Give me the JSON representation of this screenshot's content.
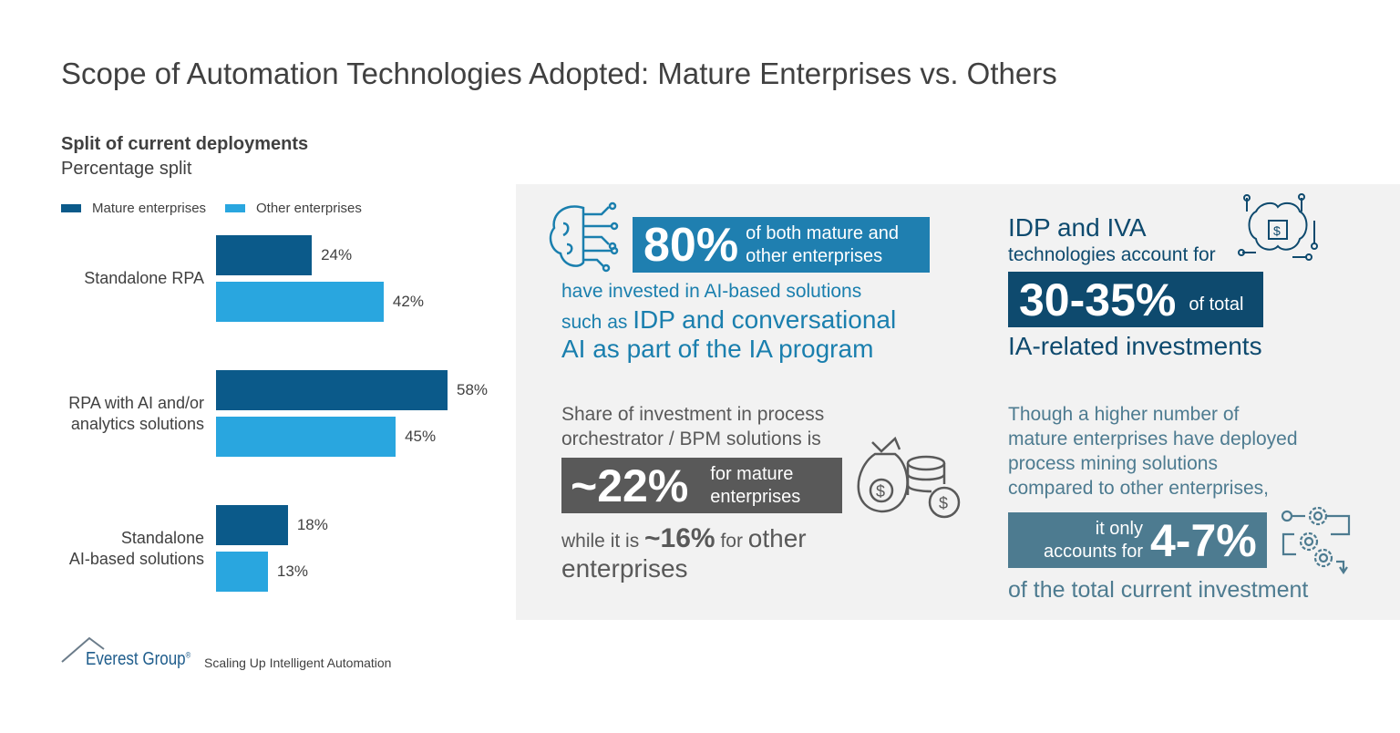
{
  "title": "Scope of Automation Technologies Adopted: Mature Enterprises vs. Others",
  "chart_data": {
    "type": "bar",
    "orientation": "horizontal",
    "title": "Split of current deployments",
    "subtitle": "Percentage split",
    "categories": [
      "Standalone RPA",
      "RPA with AI and/or analytics solutions",
      "Standalone AI-based solutions"
    ],
    "category_lines": [
      [
        "Standalone RPA"
      ],
      [
        "RPA with AI and/or",
        "analytics solutions"
      ],
      [
        "Standalone",
        "AI-based solutions"
      ]
    ],
    "series": [
      {
        "name": "Mature enterprises",
        "values": [
          24,
          58,
          18
        ],
        "color": "#0b5a8a"
      },
      {
        "name": "Other enterprises",
        "values": [
          42,
          45,
          13
        ],
        "color": "#29a6df"
      }
    ],
    "value_suffix": "%",
    "legend": "top-left",
    "grid": false
  },
  "callouts": {
    "ai": {
      "value": "80%",
      "box_text_1": "of both mature and",
      "box_text_2": "other enterprises",
      "line1": "have invested in AI-based solutions",
      "line2a": "such as ",
      "line2b": "IDP and conversational",
      "line3": "AI as part of the IA program",
      "box_color": "#1f7fb0"
    },
    "idp": {
      "line1": "IDP and IVA",
      "line2": "technologies account for",
      "value": "30-35%",
      "box_text": "of total",
      "line3": "IA-related investments",
      "box_color": "#0e4a6e"
    },
    "bpm": {
      "line1": "Share of investment in process",
      "line2": "orchestrator / BPM solutions is",
      "value": "~22%",
      "box_text_1": "for mature",
      "box_text_2": "enterprises",
      "line3a": "while it is ",
      "line3b": "~16%",
      "line3c": " for ",
      "line3d": "other",
      "line4": "enterprises",
      "box_color": "#595959"
    },
    "pm": {
      "line1": "Though a higher number of",
      "line2": "mature enterprises have deployed",
      "line3": "process mining solutions",
      "line4": "compared to other enterprises,",
      "box_text_1": "it only",
      "box_text_2": "accounts for",
      "value": "4-7%",
      "line5": "of the total current investment",
      "box_color": "#4d7b90"
    }
  },
  "footer": {
    "logo_text": "Everest Group",
    "registered": "®",
    "tagline": "Scaling Up Intelligent Automation"
  }
}
